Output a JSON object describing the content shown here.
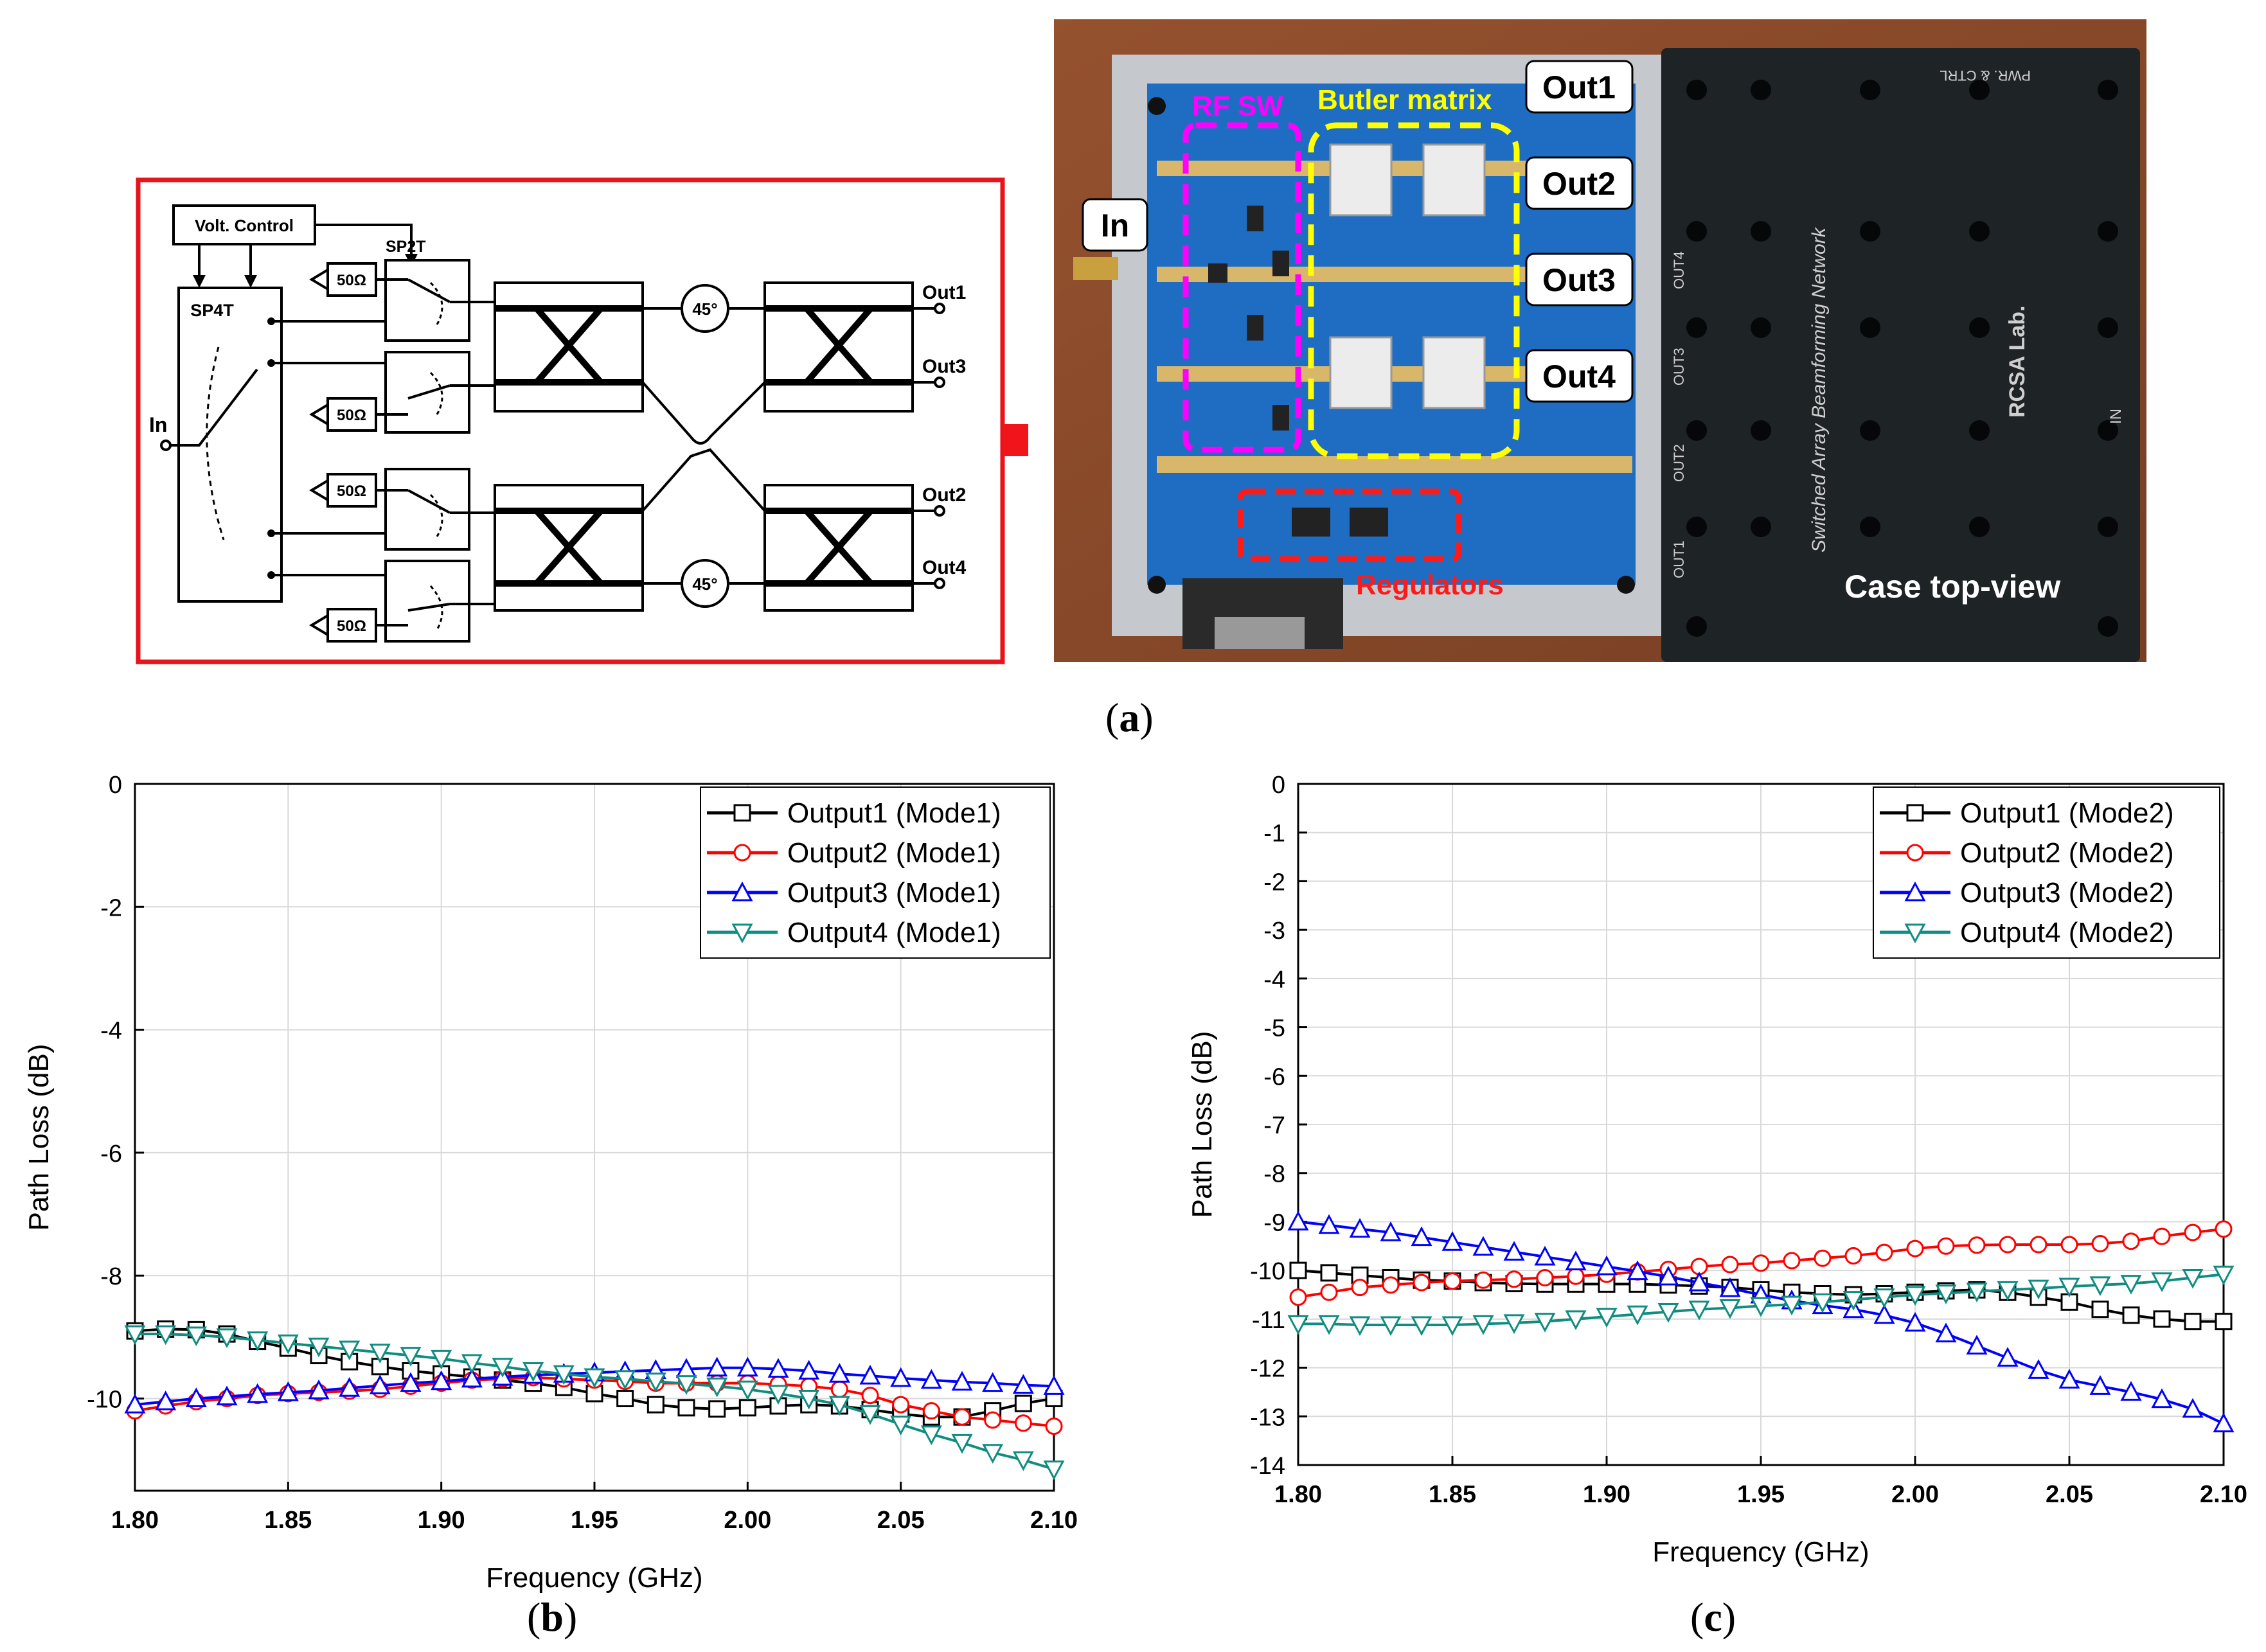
{
  "panel_a": {
    "label": "a",
    "schematic": {
      "volt_control": "Volt. Control",
      "sp4t": "SP4T",
      "sp2t": "SP2T",
      "in": "In",
      "term": "50Ω",
      "phase": "45°",
      "outputs": [
        "Out1",
        "Out3",
        "Out2",
        "Out4"
      ]
    },
    "photo": {
      "in": "In",
      "rf_sw": "RF SW",
      "butler": "Butler matrix",
      "regulators": "Regulators",
      "outputs": [
        "Out1",
        "Out2",
        "Out3",
        "Out4"
      ],
      "case_title": "Case top-view",
      "case_network": "Switched Array Beamforming Network",
      "case_lab": "RCSA Lab.",
      "case_in": "IN",
      "case_pwr": "PWR. & CTRL",
      "case_ports": [
        "OUT4",
        "OUT3",
        "OUT2",
        "OUT1"
      ]
    },
    "colors": {
      "frame": "#e8141b",
      "rf_sw": "#ff00ff",
      "butler": "#ffff00",
      "regulators": "#ff1a1a",
      "arrow": "#f0141b"
    }
  },
  "chart_data": [
    {
      "type": "line",
      "label": "b",
      "title": "",
      "xlabel": "Frequency (GHz)",
      "ylabel": "Path Loss (dB)",
      "xlim": [
        1.8,
        2.1
      ],
      "ylim": [
        -11.5,
        0
      ],
      "xticks": [
        "1.80",
        "1.85",
        "1.90",
        "1.95",
        "2.00",
        "2.05",
        "2.10"
      ],
      "yticks": [
        0,
        -2,
        -4,
        -6,
        -8,
        -10
      ],
      "grid": true,
      "legend_position": "top-right",
      "x": [
        1.8,
        1.81,
        1.82,
        1.83,
        1.84,
        1.85,
        1.86,
        1.87,
        1.88,
        1.89,
        1.9,
        1.91,
        1.92,
        1.93,
        1.94,
        1.95,
        1.96,
        1.97,
        1.98,
        1.99,
        2.0,
        2.01,
        2.02,
        2.03,
        2.04,
        2.05,
        2.06,
        2.07,
        2.08,
        2.09,
        2.1
      ],
      "series": [
        {
          "name": "Output1 (Mode1)",
          "color": "#000000",
          "marker": "square",
          "values": [
            -8.9,
            -8.87,
            -8.88,
            -8.95,
            -9.07,
            -9.18,
            -9.3,
            -9.4,
            -9.48,
            -9.55,
            -9.6,
            -9.65,
            -9.7,
            -9.75,
            -9.82,
            -9.92,
            -10.0,
            -10.1,
            -10.15,
            -10.17,
            -10.15,
            -10.12,
            -10.1,
            -10.12,
            -10.18,
            -10.25,
            -10.3,
            -10.3,
            -10.2,
            -10.08,
            -10.0
          ]
        },
        {
          "name": "Output2 (Mode1)",
          "color": "#ff0000",
          "marker": "circle",
          "values": [
            -10.2,
            -10.12,
            -10.05,
            -10.0,
            -9.95,
            -9.92,
            -9.9,
            -9.88,
            -9.85,
            -9.8,
            -9.75,
            -9.7,
            -9.68,
            -9.66,
            -9.68,
            -9.7,
            -9.72,
            -9.75,
            -9.75,
            -9.75,
            -9.75,
            -9.77,
            -9.8,
            -9.85,
            -9.95,
            -10.1,
            -10.2,
            -10.3,
            -10.35,
            -10.4,
            -10.45
          ]
        },
        {
          "name": "Output3 (Mode1)",
          "color": "#0000ff",
          "marker": "triangle-up",
          "values": [
            -10.1,
            -10.05,
            -10.0,
            -9.97,
            -9.93,
            -9.9,
            -9.87,
            -9.83,
            -9.79,
            -9.75,
            -9.72,
            -9.68,
            -9.65,
            -9.62,
            -9.6,
            -9.58,
            -9.56,
            -9.54,
            -9.52,
            -9.5,
            -9.5,
            -9.52,
            -9.55,
            -9.6,
            -9.63,
            -9.67,
            -9.7,
            -9.73,
            -9.75,
            -9.78,
            -9.8
          ]
        },
        {
          "name": "Output4 (Mode1)",
          "color": "#108d80",
          "marker": "triangle-down",
          "values": [
            -8.95,
            -8.95,
            -8.97,
            -9.0,
            -9.05,
            -9.1,
            -9.15,
            -9.2,
            -9.25,
            -9.3,
            -9.35,
            -9.42,
            -9.48,
            -9.55,
            -9.6,
            -9.65,
            -9.68,
            -9.72,
            -9.76,
            -9.8,
            -9.85,
            -9.92,
            -10.0,
            -10.1,
            -10.25,
            -10.42,
            -10.58,
            -10.72,
            -10.88,
            -11.0,
            -11.15
          ]
        }
      ]
    },
    {
      "type": "line",
      "label": "c",
      "title": "",
      "xlabel": "Frequency (GHz)",
      "ylabel": "Path Loss (dB)",
      "xlim": [
        1.8,
        2.1
      ],
      "ylim": [
        -14,
        0
      ],
      "xticks": [
        "1.80",
        "1.85",
        "1.90",
        "1.95",
        "2.00",
        "2.05",
        "2.10"
      ],
      "yticks": [
        0,
        -1,
        -2,
        -3,
        -4,
        -5,
        -6,
        -7,
        -8,
        -9,
        -10,
        -11,
        -12,
        -13,
        -14
      ],
      "grid": true,
      "legend_position": "top-right",
      "x": [
        1.8,
        1.81,
        1.82,
        1.83,
        1.84,
        1.85,
        1.86,
        1.87,
        1.88,
        1.89,
        1.9,
        1.91,
        1.92,
        1.93,
        1.94,
        1.95,
        1.96,
        1.97,
        1.98,
        1.99,
        2.0,
        2.01,
        2.02,
        2.03,
        2.04,
        2.05,
        2.06,
        2.07,
        2.08,
        2.09,
        2.1
      ],
      "series": [
        {
          "name": "Output1 (Mode2)",
          "color": "#000000",
          "marker": "square",
          "values": [
            -10.0,
            -10.05,
            -10.1,
            -10.15,
            -10.2,
            -10.22,
            -10.25,
            -10.27,
            -10.28,
            -10.28,
            -10.28,
            -10.28,
            -10.3,
            -10.32,
            -10.35,
            -10.4,
            -10.45,
            -10.48,
            -10.5,
            -10.48,
            -10.45,
            -10.42,
            -10.4,
            -10.45,
            -10.55,
            -10.65,
            -10.8,
            -10.92,
            -11.0,
            -11.05,
            -11.05
          ]
        },
        {
          "name": "Output2 (Mode2)",
          "color": "#ff0000",
          "marker": "circle",
          "values": [
            -10.55,
            -10.45,
            -10.35,
            -10.3,
            -10.25,
            -10.22,
            -10.2,
            -10.18,
            -10.15,
            -10.12,
            -10.08,
            -10.03,
            -9.98,
            -9.92,
            -9.88,
            -9.85,
            -9.8,
            -9.75,
            -9.7,
            -9.63,
            -9.55,
            -9.5,
            -9.48,
            -9.47,
            -9.47,
            -9.47,
            -9.45,
            -9.4,
            -9.3,
            -9.22,
            -9.15
          ]
        },
        {
          "name": "Output3 (Mode2)",
          "color": "#0000ff",
          "marker": "triangle-up",
          "values": [
            -9.0,
            -9.07,
            -9.15,
            -9.22,
            -9.32,
            -9.42,
            -9.52,
            -9.62,
            -9.72,
            -9.82,
            -9.92,
            -10.02,
            -10.13,
            -10.25,
            -10.37,
            -10.5,
            -10.62,
            -10.72,
            -10.8,
            -10.92,
            -11.08,
            -11.3,
            -11.55,
            -11.8,
            -12.05,
            -12.25,
            -12.38,
            -12.5,
            -12.65,
            -12.85,
            -13.15
          ]
        },
        {
          "name": "Output4 (Mode2)",
          "color": "#108d80",
          "marker": "triangle-down",
          "values": [
            -11.1,
            -11.1,
            -11.12,
            -11.12,
            -11.12,
            -11.12,
            -11.1,
            -11.08,
            -11.05,
            -11.0,
            -10.95,
            -10.9,
            -10.85,
            -10.8,
            -10.77,
            -10.73,
            -10.7,
            -10.65,
            -10.6,
            -10.55,
            -10.5,
            -10.47,
            -10.43,
            -10.4,
            -10.37,
            -10.33,
            -10.3,
            -10.27,
            -10.22,
            -10.15,
            -10.08
          ]
        }
      ]
    }
  ]
}
